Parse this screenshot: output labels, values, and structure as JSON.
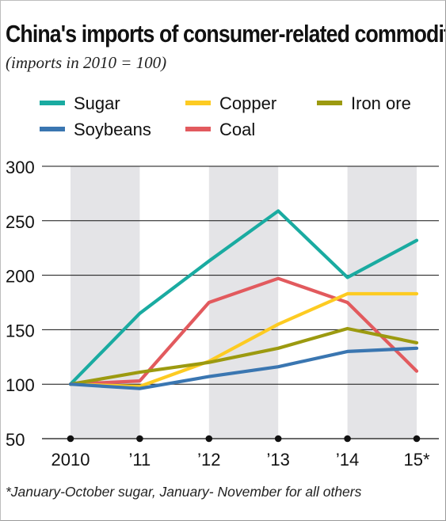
{
  "chart_data": {
    "type": "line",
    "title": "China's imports of consumer-related commodities",
    "subtitle": "(imports in 2010 = 100)",
    "footnote": "*January-October sugar, January- November for all others",
    "categories": [
      "2010",
      "’11",
      "’12",
      "’13",
      "’14",
      "15*"
    ],
    "ylim": [
      50,
      300
    ],
    "yticks": [
      50,
      100,
      150,
      200,
      250,
      300
    ],
    "grid": true,
    "legend_position": "top",
    "series": [
      {
        "name": "Sugar",
        "color": "#1aaba1",
        "values": [
          100,
          165,
          213,
          259,
          198,
          232
        ]
      },
      {
        "name": "Soybeans",
        "color": "#3a76b1",
        "values": [
          100,
          96,
          107,
          116,
          130,
          133
        ]
      },
      {
        "name": "Copper",
        "color": "#fdcb22",
        "values": [
          100,
          98,
          121,
          155,
          183,
          183
        ]
      },
      {
        "name": "Coal",
        "color": "#e25a5e",
        "values": [
          100,
          103,
          175,
          197,
          175,
          112
        ]
      },
      {
        "name": "Iron ore",
        "color": "#9c9a10",
        "values": [
          100,
          111,
          120,
          133,
          151,
          138
        ]
      }
    ]
  }
}
